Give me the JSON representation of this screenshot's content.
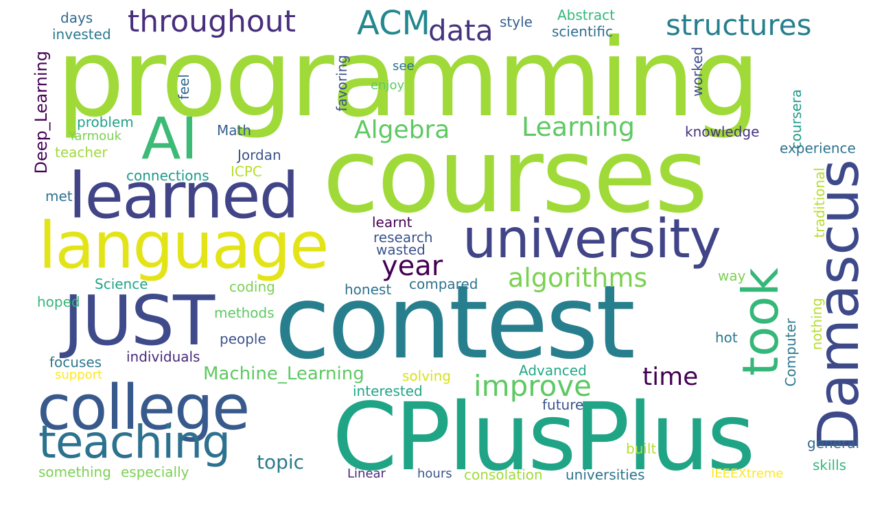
{
  "words": [
    {
      "text": "programming",
      "color": "#a0da39"
    },
    {
      "text": "courses",
      "color": "#a0da39"
    },
    {
      "text": "contest",
      "color": "#277f8e"
    },
    {
      "text": "CPlusPlus",
      "color": "#20a486"
    },
    {
      "text": "AI",
      "color": "#3bbb75"
    },
    {
      "text": "learned",
      "color": "#414487"
    },
    {
      "text": "language",
      "color": "#e3e418"
    },
    {
      "text": "university",
      "color": "#414487"
    },
    {
      "text": "JUST",
      "color": "#3e4a89"
    },
    {
      "text": "college",
      "color": "#38598c"
    },
    {
      "text": "Damascus",
      "color": "#3e4989"
    },
    {
      "text": "teaching",
      "color": "#2c718e"
    },
    {
      "text": "took",
      "color": "#35b779"
    },
    {
      "text": "throughout",
      "color": "#472f7d"
    },
    {
      "text": "ACM",
      "color": "#23888e"
    },
    {
      "text": "data",
      "color": "#46337e"
    },
    {
      "text": "structures",
      "color": "#277f8e"
    },
    {
      "text": "Algebra",
      "color": "#5ec962"
    },
    {
      "text": "Learning",
      "color": "#5ec962"
    },
    {
      "text": "year",
      "color": "#440154"
    },
    {
      "text": "algorithms",
      "color": "#7ad151"
    },
    {
      "text": "improve",
      "color": "#5ec962"
    },
    {
      "text": "time",
      "color": "#440154"
    },
    {
      "text": "Machine_Learning",
      "color": "#5ec962"
    },
    {
      "text": "topic",
      "color": "#2a788e"
    },
    {
      "text": "Deep_Learning",
      "color": "#440154"
    },
    {
      "text": "days",
      "color": "#31688e"
    },
    {
      "text": "invested",
      "color": "#2a788e"
    },
    {
      "text": "style",
      "color": "#355f8d"
    },
    {
      "text": "Abstract",
      "color": "#35b779"
    },
    {
      "text": "scientific",
      "color": "#2e6e8e"
    },
    {
      "text": "feel",
      "color": "#31688e"
    },
    {
      "text": "favoring",
      "color": "#3b528b"
    },
    {
      "text": "see",
      "color": "#2c728e"
    },
    {
      "text": "enjoy",
      "color": "#5ec962"
    },
    {
      "text": "worked",
      "color": "#3e4a89"
    },
    {
      "text": "coursera",
      "color": "#1f9a8a"
    },
    {
      "text": "problem",
      "color": "#1fa187"
    },
    {
      "text": "Math",
      "color": "#355f8d"
    },
    {
      "text": "knowledge",
      "color": "#46337e"
    },
    {
      "text": "Yarmouk",
      "color": "#7ad151"
    },
    {
      "text": "teacher",
      "color": "#a0da39"
    },
    {
      "text": "experience",
      "color": "#2c728e"
    },
    {
      "text": "Jordan",
      "color": "#3b528b"
    },
    {
      "text": "connections",
      "color": "#1f9a8a"
    },
    {
      "text": "ICPC",
      "color": "#b5de2b"
    },
    {
      "text": "met",
      "color": "#2d708e"
    },
    {
      "text": "traditional",
      "color": "#b5de2b"
    },
    {
      "text": "learnt",
      "color": "#440154"
    },
    {
      "text": "research",
      "color": "#3b528b"
    },
    {
      "text": "wasted",
      "color": "#3b528b"
    },
    {
      "text": "Science",
      "color": "#20a486"
    },
    {
      "text": "coding",
      "color": "#7ad151"
    },
    {
      "text": "honest",
      "color": "#2c728e"
    },
    {
      "text": "compared",
      "color": "#2c728e"
    },
    {
      "text": "way",
      "color": "#7ad151"
    },
    {
      "text": "hoped",
      "color": "#35b779"
    },
    {
      "text": "methods",
      "color": "#5ec962"
    },
    {
      "text": "nothing",
      "color": "#b5de2b"
    },
    {
      "text": "people",
      "color": "#3b528b"
    },
    {
      "text": "hot",
      "color": "#2a788e"
    },
    {
      "text": "Computer",
      "color": "#2a788e"
    },
    {
      "text": "focuses",
      "color": "#2a788e"
    },
    {
      "text": "individuals",
      "color": "#482878"
    },
    {
      "text": "support",
      "color": "#fde725"
    },
    {
      "text": "solving",
      "color": "#d8e219"
    },
    {
      "text": "Advanced",
      "color": "#22a884"
    },
    {
      "text": "interested",
      "color": "#20a486"
    },
    {
      "text": "future",
      "color": "#3b528b"
    },
    {
      "text": "general",
      "color": "#31688e"
    },
    {
      "text": "built",
      "color": "#b5de2b"
    },
    {
      "text": "something",
      "color": "#7ad151"
    },
    {
      "text": "especially",
      "color": "#7ad151"
    },
    {
      "text": "Linear",
      "color": "#482878"
    },
    {
      "text": "hours",
      "color": "#3b528b"
    },
    {
      "text": "consolation",
      "color": "#a0da39"
    },
    {
      "text": "universities",
      "color": "#2c728e"
    },
    {
      "text": "IEEEXtreme",
      "color": "#fde725"
    },
    {
      "text": "skills",
      "color": "#35b779"
    }
  ]
}
